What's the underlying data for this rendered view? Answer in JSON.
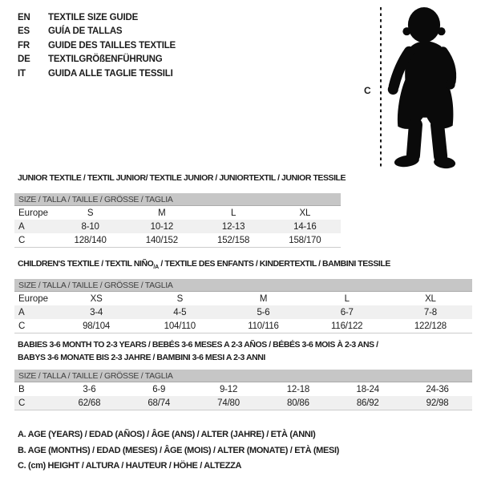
{
  "languages": [
    {
      "code": "EN",
      "title": "TEXTILE SIZE GUIDE"
    },
    {
      "code": "ES",
      "title": "GUÍA DE TALLAS"
    },
    {
      "code": "FR",
      "title": "GUIDE DES TAILLES TEXTILE"
    },
    {
      "code": "DE",
      "title": "TEXTILGRÖßENFÜHRUNG"
    },
    {
      "code": "IT",
      "title": "GUIDA ALLE TAGLIE TESSILI"
    }
  ],
  "figure": {
    "label": "C",
    "silhouette": "baby-toddler-standing"
  },
  "sections": [
    {
      "name": "junior",
      "title": "JUNIOR TEXTILE / TEXTIL JUNIOR/ TEXTILE JUNIOR / JUNIORTEXTIL / JUNIOR TESSILE",
      "table": {
        "header": "SIZE / TALLA / TAILLE / GRÖSSE / TAGLIA",
        "rows": [
          {
            "label": "Europe",
            "values": [
              "S",
              "M",
              "L",
              "XL"
            ]
          },
          {
            "label": "A",
            "values": [
              "8-10",
              "10-12",
              "12-13",
              "14-16"
            ]
          },
          {
            "label": "C",
            "values": [
              "128/140",
              "140/152",
              "152/158",
              "158/170"
            ]
          }
        ]
      }
    },
    {
      "name": "children",
      "title_pre": "CHILDREN'S TEXTILE / TEXTIL NIÑO",
      "title_sub": "/A",
      "title_post": " / TEXTILE DES ENFANTS / KINDERTEXTIL / BAMBINI TESSILE",
      "table": {
        "header": "SIZE / TALLA / TAILLE / GRÖSSE / TAGLIA",
        "rows": [
          {
            "label": "Europe",
            "values": [
              "XS",
              "S",
              "M",
              "L",
              "XL"
            ]
          },
          {
            "label": "A",
            "values": [
              "3-4",
              "4-5",
              "5-6",
              "6-7",
              "7-8"
            ]
          },
          {
            "label": "C",
            "values": [
              "98/104",
              "104/110",
              "110/116",
              "116/122",
              "122/128"
            ]
          }
        ]
      }
    },
    {
      "name": "babies",
      "title_line1": "BABIES 3-6 MONTH TO 2-3 YEARS / BEBÉS 3-6 MESES A 2-3 AÑOS / BÉBÉS 3-6 MOIS À 2-3 ANS /",
      "title_line2": "BABYS 3-6 MONATE BIS 2-3 JAHRE / BAMBINI 3-6 MESI A 2-3 ANNI",
      "table": {
        "header": "SIZE / TALLA / TAILLE / GRÖSSE / TAGLIA",
        "rows": [
          {
            "label": "B",
            "values": [
              "3-6",
              "6-9",
              "9-12",
              "12-18",
              "18-24",
              "24-36"
            ]
          },
          {
            "label": "C",
            "values": [
              "62/68",
              "68/74",
              "74/80",
              "80/86",
              "86/92",
              "92/98"
            ]
          }
        ]
      }
    }
  ],
  "legend": [
    "A. AGE (YEARS) / EDAD (AÑOS) / ÂGE (ANS) / ALTER (JAHRE) / ETÀ (ANNI)",
    "B. AGE (MONTHS) / EDAD (MESES) / ÂGE (MOIS) / ALTER (MONATE) / ETÀ (MESI)",
    "C. (cm) HEIGHT / ALTURA / HAUTEUR / HÖHE / ALTEZZA"
  ],
  "colors": {
    "table_header_bg": "#c6c6c6",
    "table_header_text": "#3f3f3f",
    "row_alt_bg": "#f0f0f0",
    "text": "#1c1c1c"
  }
}
